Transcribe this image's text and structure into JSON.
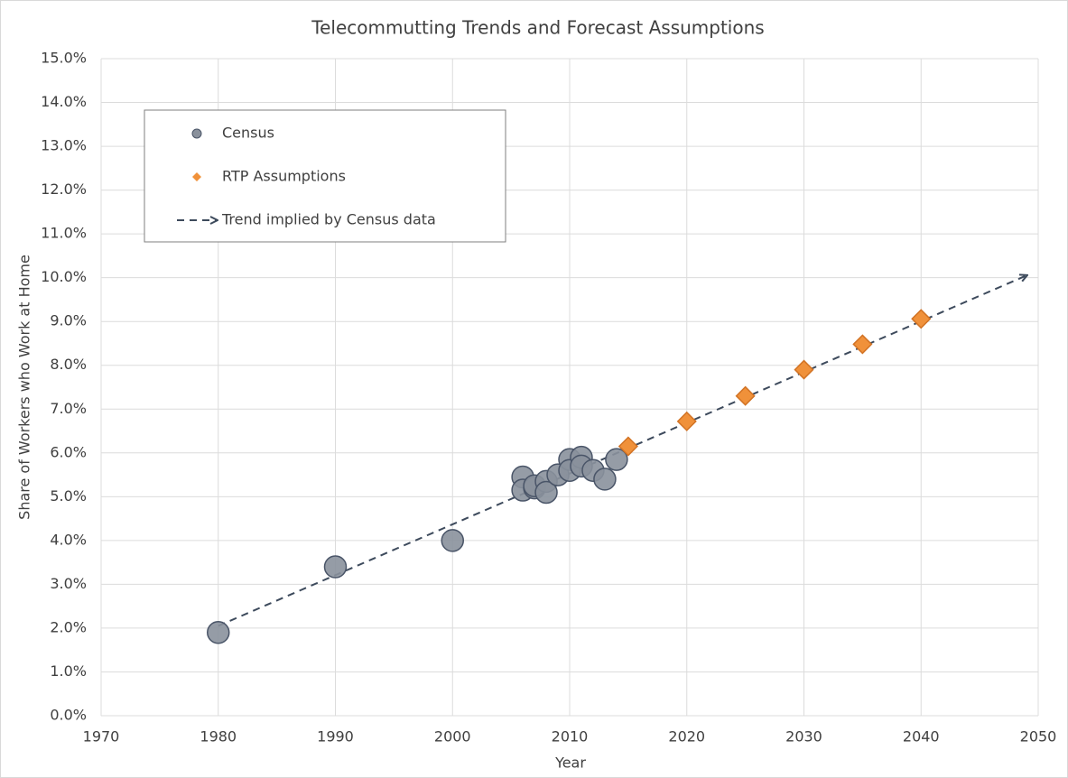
{
  "chart_data": {
    "type": "scatter",
    "title": "Telecommutting Trends and Forecast Assumptions",
    "x_label": "Year",
    "y_label": "Share of Workers who Work at Home",
    "xlim": [
      1970,
      2050
    ],
    "xticks": [
      1970,
      1980,
      1990,
      2000,
      2010,
      2020,
      2030,
      2040,
      2050
    ],
    "ylim": [
      0,
      15
    ],
    "yticks": [
      {
        "value": 0,
        "label": "0.0%"
      },
      {
        "value": 1,
        "label": "1.0%"
      },
      {
        "value": 2,
        "label": "2.0%"
      },
      {
        "value": 3,
        "label": "3.0%"
      },
      {
        "value": 4,
        "label": "4.0%"
      },
      {
        "value": 5,
        "label": "5.0%"
      },
      {
        "value": 6,
        "label": "6.0%"
      },
      {
        "value": 7,
        "label": "7.0%"
      },
      {
        "value": 8,
        "label": "8.0%"
      },
      {
        "value": 9,
        "label": "9.0%"
      },
      {
        "value": 10,
        "label": "10.0%"
      },
      {
        "value": 11,
        "label": "11.0%"
      },
      {
        "value": 12,
        "label": "12.0%"
      },
      {
        "value": 13,
        "label": "13.0%"
      },
      {
        "value": 14,
        "label": "14.0%"
      },
      {
        "value": 15,
        "label": "15.0%"
      }
    ],
    "grid": true,
    "legend": "upper left",
    "series": [
      {
        "name": "Census",
        "color": "#8a919c",
        "marker": "circle",
        "x": [
          1980,
          1990,
          2000,
          2006,
          2006,
          2007,
          2007,
          2008,
          2008,
          2009,
          2010,
          2010,
          2011,
          2011,
          2012,
          2013,
          2014
        ],
        "values": [
          1.9,
          3.4,
          4.0,
          5.45,
          5.15,
          5.2,
          5.25,
          5.35,
          5.1,
          5.5,
          5.85,
          5.6,
          5.9,
          5.7,
          5.6,
          5.4,
          5.85
        ]
      },
      {
        "name": "RTP Assumptions",
        "color": "#f0913a",
        "marker": "diamond",
        "x": [
          2015,
          2020,
          2025,
          2030,
          2035,
          2040
        ],
        "values": [
          6.15,
          6.72,
          7.3,
          7.9,
          8.48,
          9.06
        ]
      },
      {
        "name": "Trend implied by Census data",
        "color": "#3d4a5c",
        "marker": "dashed-arrow",
        "x": [
          1980,
          2049
        ],
        "values": [
          2.05,
          10.05
        ]
      }
    ]
  }
}
